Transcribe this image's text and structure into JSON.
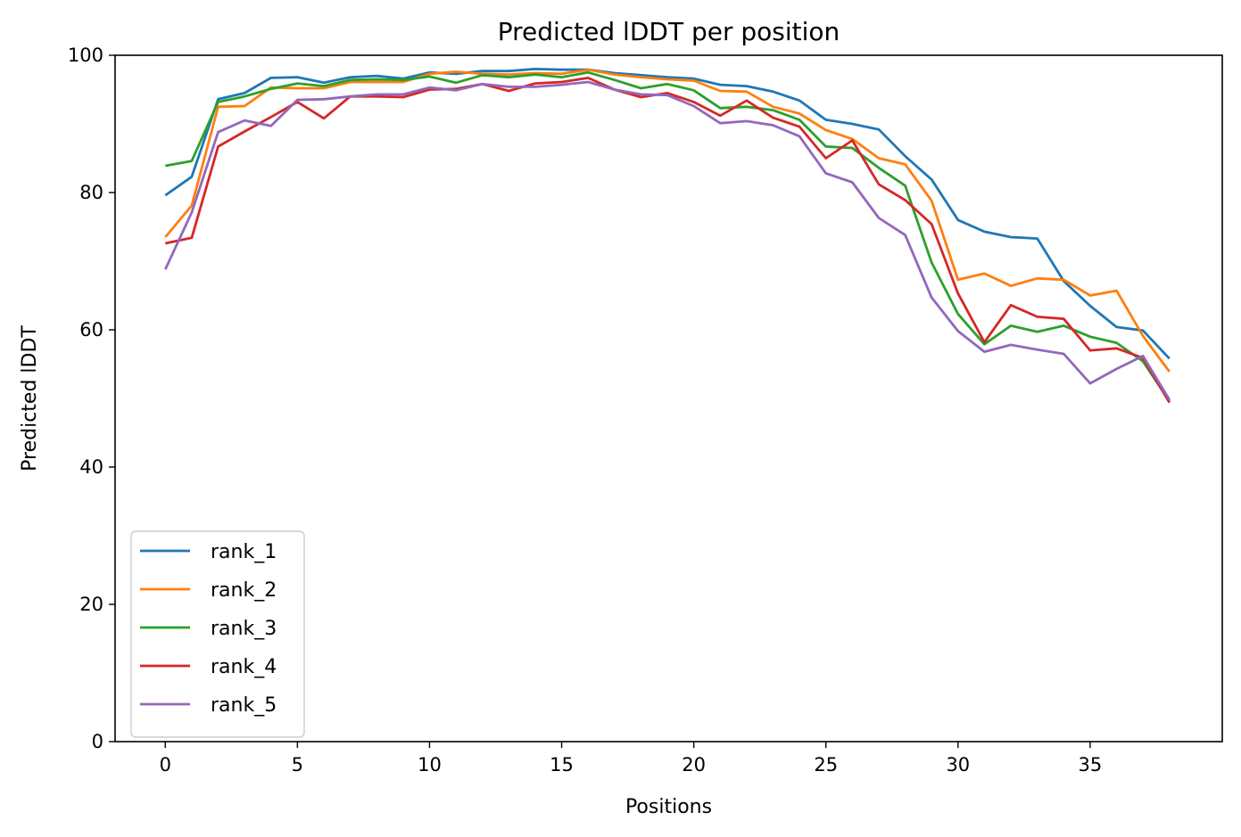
{
  "chart_data": {
    "type": "line",
    "title": "Predicted lDDT per position",
    "xlabel": "Positions",
    "ylabel": "Predicted lDDT",
    "xlim": [
      -1.9,
      40.0
    ],
    "ylim": [
      0,
      100
    ],
    "xticks": [
      0,
      5,
      10,
      15,
      20,
      25,
      30,
      35
    ],
    "yticks": [
      0,
      20,
      40,
      60,
      80,
      100
    ],
    "grid": false,
    "legend_position": "lower-left",
    "x": [
      0,
      1,
      2,
      3,
      4,
      5,
      6,
      7,
      8,
      9,
      10,
      11,
      12,
      13,
      14,
      15,
      16,
      17,
      18,
      19,
      20,
      21,
      22,
      23,
      24,
      25,
      26,
      27,
      28,
      29,
      30,
      31,
      32,
      33,
      34,
      35,
      36,
      37,
      38
    ],
    "series": [
      {
        "name": "rank_1",
        "color": "#1f77b4",
        "values": [
          79.6,
          82.3,
          93.6,
          94.5,
          96.7,
          96.8,
          96.0,
          96.8,
          97.0,
          96.6,
          97.5,
          97.3,
          97.7,
          97.7,
          98.0,
          97.9,
          97.9,
          97.4,
          97.1,
          96.8,
          96.6,
          95.7,
          95.5,
          94.7,
          93.4,
          90.6,
          90.0,
          89.2,
          85.3,
          81.9,
          76.0,
          74.3,
          73.5,
          73.3,
          67.1,
          63.5,
          60.4,
          59.9,
          55.8
        ]
      },
      {
        "name": "rank_2",
        "color": "#ff7f0e",
        "values": [
          73.5,
          78.1,
          92.5,
          92.6,
          95.3,
          95.2,
          95.2,
          96.1,
          96.1,
          96.1,
          97.3,
          97.6,
          97.3,
          97.2,
          97.4,
          97.3,
          97.9,
          97.2,
          96.8,
          96.5,
          96.3,
          94.8,
          94.7,
          92.5,
          91.5,
          89.1,
          87.8,
          85.0,
          84.1,
          78.8,
          67.3,
          68.2,
          66.4,
          67.5,
          67.3,
          65.0,
          65.7,
          59.1,
          53.9
        ]
      },
      {
        "name": "rank_3",
        "color": "#2ca02c",
        "values": [
          83.9,
          84.6,
          93.2,
          94.0,
          95.1,
          95.9,
          95.5,
          96.4,
          96.5,
          96.4,
          96.9,
          96.0,
          97.1,
          96.8,
          97.2,
          96.8,
          97.5,
          96.4,
          95.2,
          95.8,
          94.9,
          92.3,
          92.5,
          92.0,
          90.6,
          86.7,
          86.5,
          83.6,
          81.0,
          69.8,
          62.3,
          57.9,
          60.6,
          59.7,
          60.6,
          59.0,
          58.1,
          55.4,
          49.6
        ]
      },
      {
        "name": "rank_4",
        "color": "#d62728",
        "values": [
          72.6,
          73.4,
          86.7,
          88.9,
          91.0,
          93.2,
          90.8,
          94.0,
          94.0,
          93.9,
          95.0,
          95.1,
          95.8,
          94.8,
          95.9,
          96.1,
          96.7,
          95.0,
          93.9,
          94.5,
          93.2,
          91.2,
          93.4,
          90.9,
          89.6,
          85.0,
          87.6,
          81.2,
          78.9,
          75.4,
          65.3,
          58.2,
          63.6,
          61.9,
          61.6,
          57.0,
          57.3,
          55.9,
          49.4
        ]
      },
      {
        "name": "rank_5",
        "color": "#9467bd",
        "values": [
          68.8,
          77.1,
          88.8,
          90.5,
          89.7,
          93.5,
          93.6,
          94.0,
          94.3,
          94.3,
          95.3,
          94.9,
          95.8,
          95.4,
          95.4,
          95.7,
          96.1,
          95.0,
          94.3,
          94.2,
          92.6,
          90.1,
          90.4,
          89.8,
          88.2,
          82.8,
          81.5,
          76.3,
          73.8,
          64.7,
          59.8,
          56.8,
          57.8,
          57.1,
          56.5,
          52.2,
          54.3,
          56.2,
          49.8
        ]
      }
    ]
  }
}
